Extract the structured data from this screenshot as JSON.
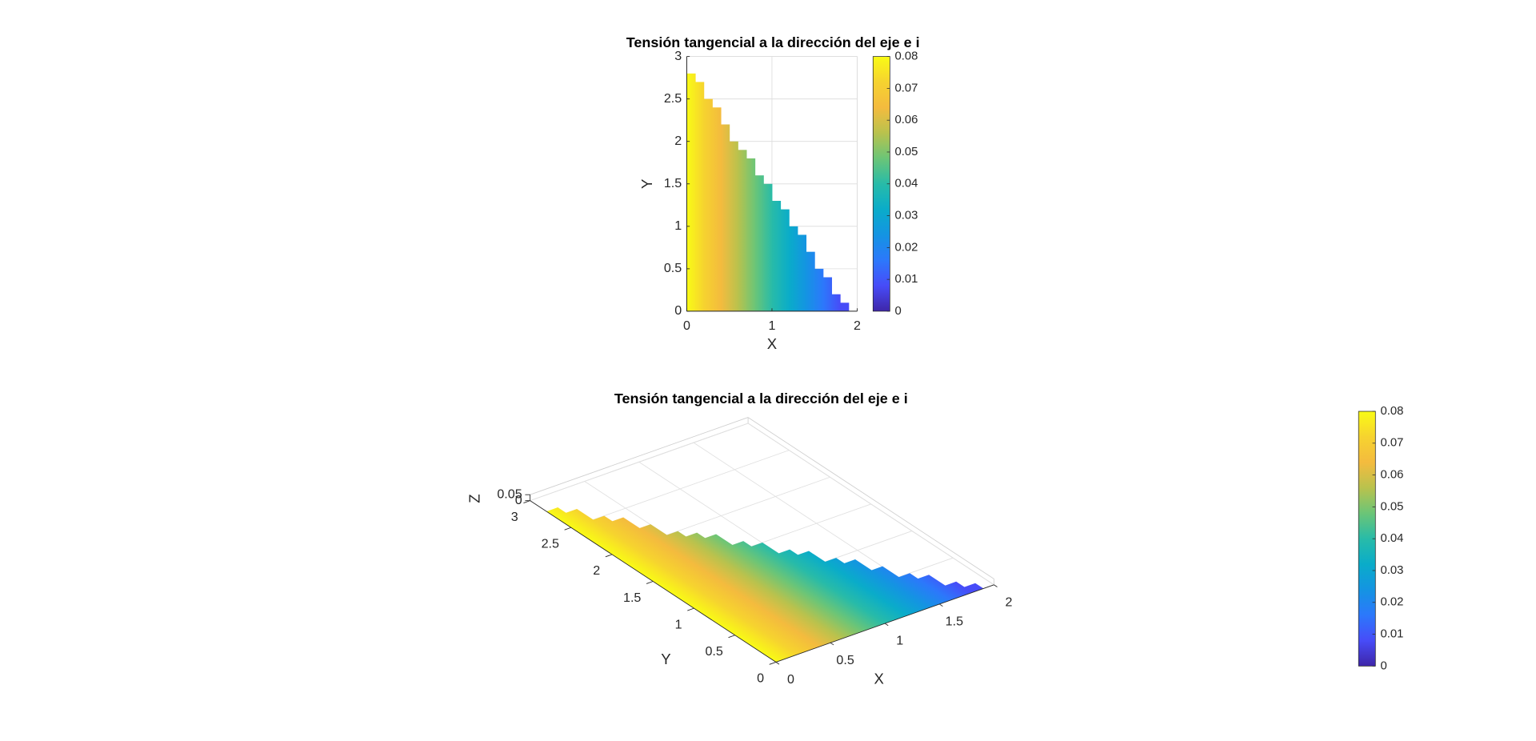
{
  "chart_data": [
    {
      "type": "surface2d",
      "title": "Tensión tangencial a la dirección del eje e i",
      "xlabel": "X",
      "ylabel": "Y",
      "x": [
        0,
        0.1,
        0.2,
        0.3,
        0.4,
        0.5,
        0.6,
        0.7,
        0.8,
        0.9,
        1.0,
        1.1,
        1.2,
        1.3,
        1.4,
        1.5,
        1.6,
        1.7,
        1.8
      ],
      "top": [
        2.8,
        2.7,
        2.5,
        2.4,
        2.2,
        2.0,
        1.9,
        1.8,
        1.6,
        1.5,
        1.3,
        1.2,
        1.0,
        0.9,
        0.7,
        0.5,
        0.4,
        0.2,
        0.1
      ],
      "values": [
        0.08,
        0.076,
        0.072,
        0.068,
        0.064,
        0.06,
        0.056,
        0.052,
        0.048,
        0.044,
        0.04,
        0.036,
        0.032,
        0.028,
        0.024,
        0.02,
        0.016,
        0.012,
        0.008
      ],
      "xlim": [
        0,
        2
      ],
      "ylim": [
        0,
        3
      ],
      "xticks": [
        0,
        1,
        2
      ],
      "yticks": [
        0,
        0.5,
        1,
        1.5,
        2,
        2.5,
        3
      ],
      "clim": [
        0,
        0.08
      ],
      "cticks": [
        0,
        0.01,
        0.02,
        0.03,
        0.04,
        0.05,
        0.06,
        0.07,
        0.08
      ],
      "grid": true,
      "colormap": "parula"
    },
    {
      "type": "surface3d",
      "title": "Tensión tangencial a la dirección del eje e i",
      "xlabel": "X",
      "ylabel": "Y",
      "zlabel": "Z",
      "x": [
        0,
        0.1,
        0.2,
        0.3,
        0.4,
        0.5,
        0.6,
        0.7,
        0.8,
        0.9,
        1.0,
        1.1,
        1.2,
        1.3,
        1.4,
        1.5,
        1.6,
        1.7,
        1.8
      ],
      "top": [
        2.8,
        2.7,
        2.5,
        2.4,
        2.2,
        2.0,
        1.9,
        1.8,
        1.6,
        1.5,
        1.3,
        1.2,
        1.0,
        0.9,
        0.7,
        0.5,
        0.4,
        0.2,
        0.1
      ],
      "values": [
        0.08,
        0.076,
        0.072,
        0.068,
        0.064,
        0.06,
        0.056,
        0.052,
        0.048,
        0.044,
        0.04,
        0.036,
        0.032,
        0.028,
        0.024,
        0.02,
        0.016,
        0.012,
        0.008
      ],
      "xlim": [
        0,
        2
      ],
      "ylim": [
        0,
        3
      ],
      "zlim": [
        0,
        0.05
      ],
      "xticks": [
        0,
        0.5,
        1,
        1.5,
        2
      ],
      "yticks": [
        0,
        0.5,
        1,
        1.5,
        2,
        2.5,
        3
      ],
      "zticks": [
        0,
        0.05
      ],
      "clim": [
        0,
        0.08
      ],
      "cticks": [
        0,
        0.01,
        0.02,
        0.03,
        0.04,
        0.05,
        0.06,
        0.07,
        0.08
      ],
      "grid": true,
      "colormap": "parula"
    }
  ]
}
